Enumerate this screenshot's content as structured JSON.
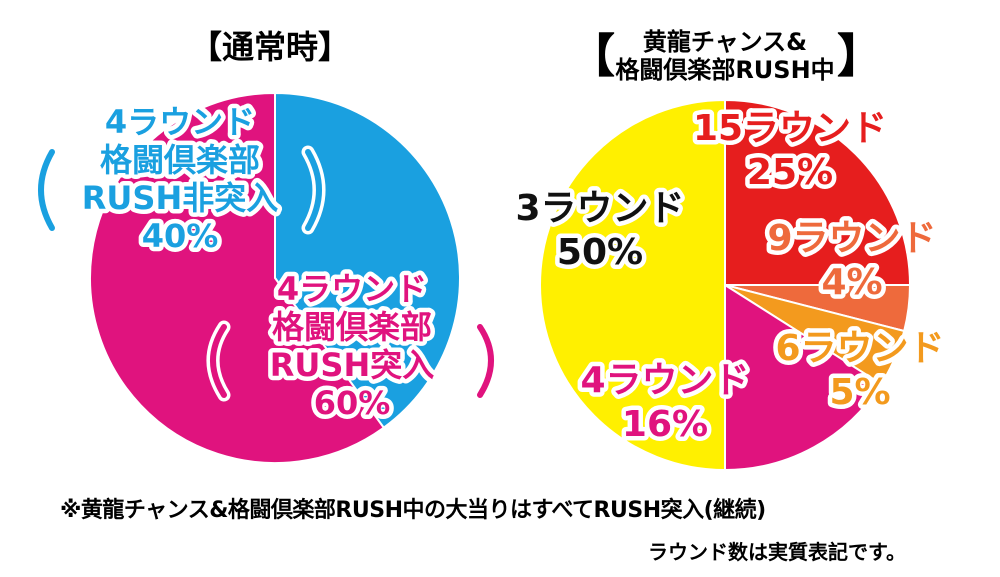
{
  "chart_data": [
    {
      "type": "pie",
      "title": "【通常時】",
      "slices": [
        {
          "lines": [
            "4ラウンド",
            "格闘倶楽部",
            "RUSH非突入"
          ],
          "value": 40,
          "value_label": "40%",
          "color": "#1AA0E0",
          "text_color": "#1AA0E0"
        },
        {
          "lines": [
            "4ラウンド",
            "格闘倶楽部",
            "RUSH突入"
          ],
          "value": 60,
          "value_label": "60%",
          "color": "#E0137E",
          "text_color": "#E0137E"
        }
      ]
    },
    {
      "type": "pie",
      "title_lines": [
        "黄龍チャンス&",
        "格闘倶楽部RUSH中"
      ],
      "slices": [
        {
          "lines": [
            "15ラウンド"
          ],
          "value": 25,
          "value_label": "25%",
          "color": "#E61E1E",
          "text_color": "#E61E1E"
        },
        {
          "lines": [
            "9ラウンド"
          ],
          "value": 4,
          "value_label": "4%",
          "color": "#EE6A3C",
          "text_color": "#EE6A3C"
        },
        {
          "lines": [
            "6ラウンド"
          ],
          "value": 5,
          "value_label": "5%",
          "color": "#F39A1E",
          "text_color": "#F39A1E"
        },
        {
          "lines": [
            "4ラウンド"
          ],
          "value": 16,
          "value_label": "16%",
          "color": "#E0137E",
          "text_color": "#E0137E"
        },
        {
          "lines": [
            "3ラウンド"
          ],
          "value": 50,
          "value_label": "50%",
          "color": "#FFF000",
          "text_color": "#111111"
        }
      ]
    }
  ],
  "footnote": {
    "line1": "※黄龍チャンス&格闘倶楽部RUSH中の大当りはすべてRUSH突入(継続)",
    "line2": "ラウンド数は実質表記です。"
  }
}
